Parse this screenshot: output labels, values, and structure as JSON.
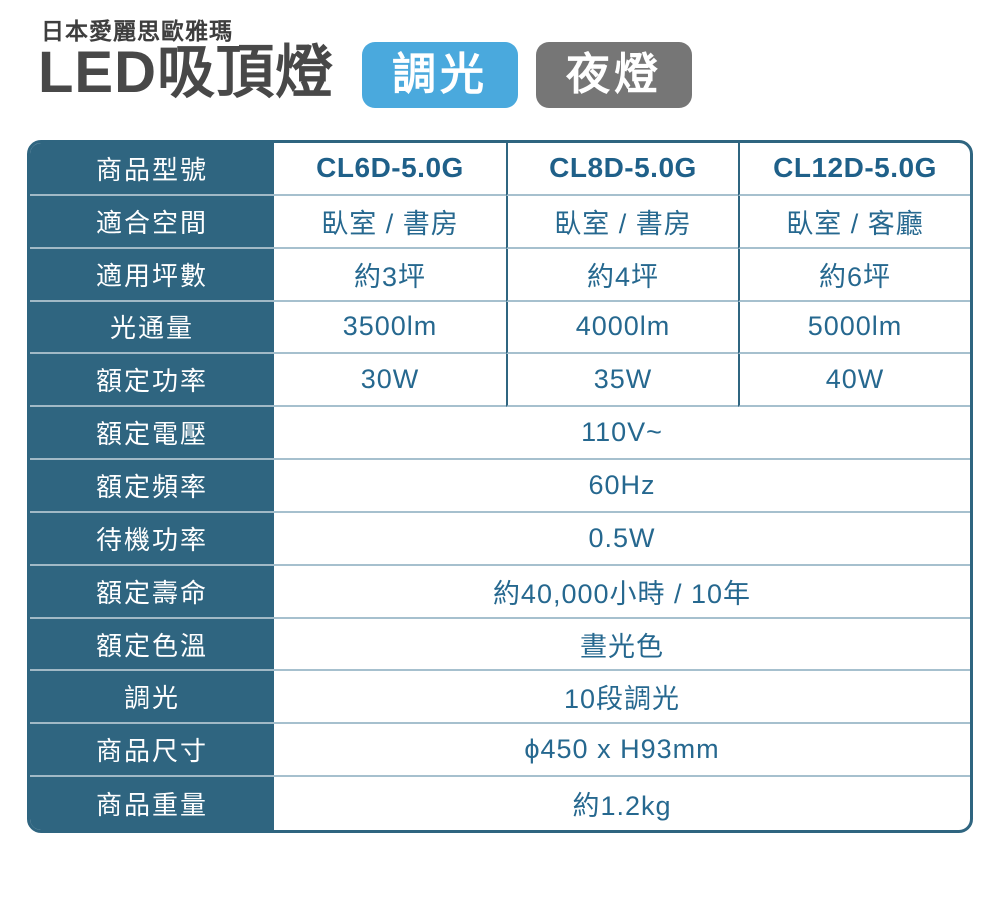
{
  "header": {
    "brand": "日本愛麗思歐雅瑪",
    "title": "LED吸頂燈",
    "badges": [
      {
        "label": "調光",
        "color": "#4aa9dd"
      },
      {
        "label": "夜燈",
        "color": "#767676"
      }
    ]
  },
  "colors": {
    "table_accent": "#2f6580",
    "value_text": "#26688f",
    "row_line": "#a6c0ce",
    "title_text": "#484848"
  },
  "table": {
    "rows": [
      {
        "label": "商品型號",
        "bold": true,
        "values": [
          "CL6D-5.0G",
          "CL8D-5.0G",
          "CL12D-5.0G"
        ]
      },
      {
        "label": "適合空間",
        "values": [
          "臥室 / 書房",
          "臥室 / 書房",
          "臥室 / 客廳"
        ]
      },
      {
        "label": "適用坪數",
        "values": [
          "約3坪",
          "約4坪",
          "約6坪"
        ]
      },
      {
        "label": "光通量",
        "values": [
          "3500lm",
          "4000lm",
          "5000lm"
        ]
      },
      {
        "label": "額定功率",
        "values": [
          "30W",
          "35W",
          "40W"
        ]
      },
      {
        "label": "額定電壓",
        "span": "110V~"
      },
      {
        "label": "額定頻率",
        "span": "60Hz"
      },
      {
        "label": "待機功率",
        "span": "0.5W"
      },
      {
        "label": "額定壽命",
        "span": "約40,000小時 / 10年"
      },
      {
        "label": "額定色溫",
        "span": "晝光色"
      },
      {
        "label": "調光",
        "span": "10段調光"
      },
      {
        "label": "商品尺寸",
        "span": "ϕ450 x H93mm"
      },
      {
        "label": "商品重量",
        "span": "約1.2kg"
      }
    ]
  }
}
